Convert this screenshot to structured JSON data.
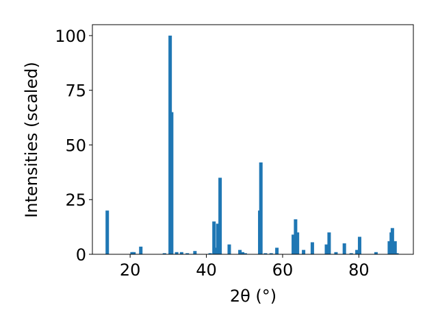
{
  "chart_data": {
    "type": "bar",
    "x_label": "2θ (°)",
    "y_label": "Intensities (scaled)",
    "x": [
      14,
      20.5,
      21,
      22.8,
      29,
      30.5,
      30.9,
      32.2,
      33.5,
      35,
      37,
      41,
      42,
      42.4,
      43,
      43.6,
      46,
      48.8,
      49.5,
      50.2,
      54,
      54.3,
      55.5,
      57,
      58.5,
      62.8,
      63.4,
      63.9,
      65.5,
      67.8,
      71.5,
      72.2,
      74,
      76.2,
      78,
      79.5,
      80.2,
      84.5,
      88,
      88.5,
      88.8,
      89.5,
      90
    ],
    "values": [
      20,
      1,
      1,
      3.5,
      0.5,
      100,
      65,
      1,
      1,
      0.5,
      1.5,
      0.5,
      15,
      3,
      14,
      35,
      4.5,
      2,
      1,
      0.5,
      20,
      42,
      0.5,
      0.5,
      3,
      9,
      16,
      10,
      2,
      5.5,
      4.5,
      10,
      1,
      5,
      0.5,
      2,
      8,
      1,
      6,
      10,
      12,
      6,
      0.5
    ],
    "color": "#1f77b4",
    "xlim": [
      10.1,
      94.3
    ],
    "ylim": [
      0,
      105
    ],
    "xticks": [
      20,
      40,
      60,
      80
    ],
    "yticks": [
      0,
      25,
      50,
      75,
      100
    ]
  }
}
